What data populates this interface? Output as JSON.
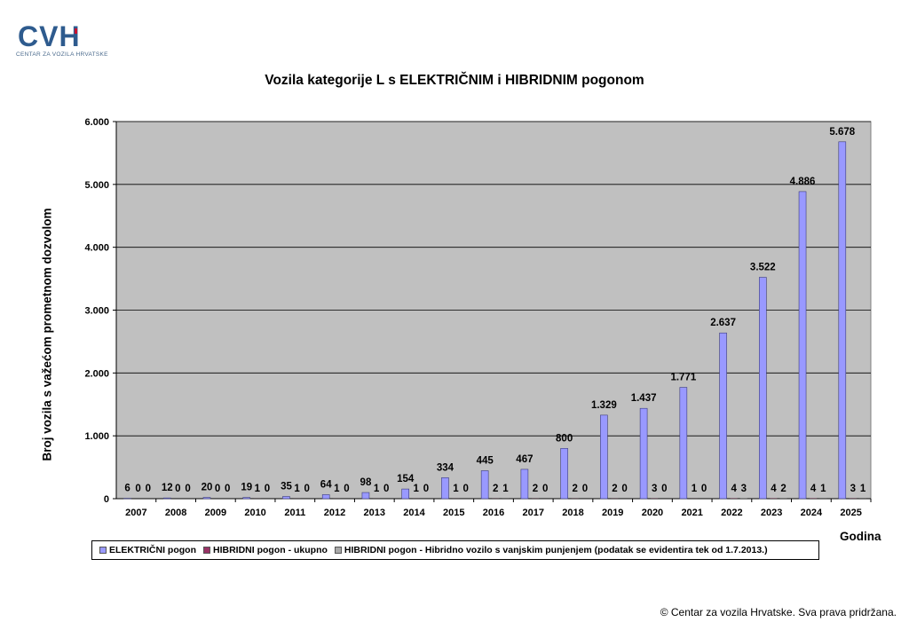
{
  "logo": {
    "text": "CVH",
    "subtitle": "CENTAR ZA VOZILA HRVATSKE"
  },
  "copyright": "© Centar za vozila Hrvatske. Sva prava pridržana.",
  "colors": {
    "electric": "#9999ff",
    "hybrid_total": "#993366",
    "hybrid_plugin": "#a9a9a9",
    "plot_bg": "#c0c0c0",
    "logo": "#2e5b8e"
  },
  "chart_data": {
    "type": "bar",
    "title": "Vozila kategorije L s ELEKTRIČNIM i HIBRIDNIM pogonom",
    "xlabel": "Godina",
    "ylabel": "Broj vozila s važećom prometnom dozvolom",
    "ylim": [
      0,
      6000
    ],
    "yticks": [
      "0",
      "1.000",
      "2.000",
      "3.000",
      "4.000",
      "5.000",
      "6.000"
    ],
    "grid": true,
    "legend_position": "bottom",
    "categories": [
      "2007",
      "2008",
      "2009",
      "2010",
      "2011",
      "2012",
      "2013",
      "2014",
      "2015",
      "2016",
      "2017",
      "2018",
      "2019",
      "2020",
      "2021",
      "2022",
      "2023",
      "2024",
      "2025"
    ],
    "series": [
      {
        "name": "ELEKTRIČNI pogon",
        "values": [
          6,
          12,
          20,
          19,
          35,
          64,
          98,
          154,
          334,
          445,
          467,
          800,
          1329,
          1437,
          1771,
          2637,
          3522,
          4886,
          5678
        ],
        "labels": [
          "6",
          "12",
          "20",
          "19",
          "35",
          "64",
          "98",
          "154",
          "334",
          "445",
          "467",
          "800",
          "1.329",
          "1.437",
          "1.771",
          "2.637",
          "3.522",
          "4.886",
          "5.678"
        ]
      },
      {
        "name": "HIBRIDNI pogon - ukupno",
        "values": [
          0,
          0,
          0,
          1,
          1,
          1,
          1,
          1,
          1,
          2,
          2,
          2,
          2,
          3,
          1,
          4,
          4,
          4,
          3
        ],
        "labels": [
          "0",
          "0",
          "0",
          "1",
          "1",
          "1",
          "1",
          "1",
          "1",
          "2",
          "2",
          "2",
          "2",
          "3",
          "1",
          "4",
          "4",
          "4",
          "3"
        ]
      },
      {
        "name": "HIBRIDNI pogon - Hibridno vozilo s vanjskim punjenjem (podatak se evidentira tek od 1.7.2013.)",
        "values": [
          0,
          0,
          0,
          0,
          0,
          0,
          0,
          0,
          0,
          1,
          0,
          0,
          0,
          0,
          0,
          3,
          2,
          1,
          1
        ],
        "labels": [
          "0",
          "0",
          "0",
          "0",
          "0",
          "0",
          "0",
          "0",
          "0",
          "1",
          "0",
          "0",
          "0",
          "0",
          "0",
          "3",
          "2",
          "1",
          "1"
        ]
      }
    ]
  }
}
